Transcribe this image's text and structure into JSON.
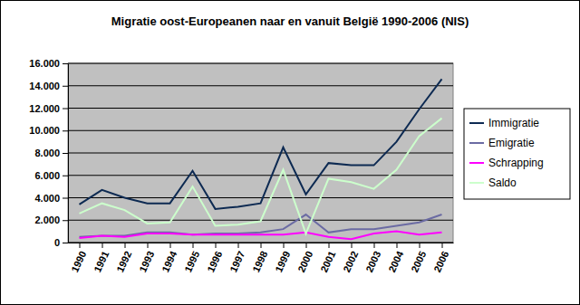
{
  "chart_data": {
    "type": "line",
    "title": "Migratie oost-Europeanen naar en vanuit België 1990-2006 (NIS)",
    "categories": [
      "1990",
      "1991",
      "1992",
      "1993",
      "1994",
      "1995",
      "1996",
      "1997",
      "1998",
      "1999",
      "2000",
      "2001",
      "2002",
      "2003",
      "2004",
      "2005",
      "2006"
    ],
    "series": [
      {
        "name": "Immigratie",
        "color": "#0d2a52",
        "values": [
          3400,
          4700,
          4000,
          3500,
          3500,
          6400,
          3000,
          3200,
          3500,
          8500,
          4300,
          7100,
          6900,
          6900,
          9000,
          11900,
          14600
        ]
      },
      {
        "name": "Emigratie",
        "color": "#6b6ba3",
        "values": [
          500,
          600,
          600,
          900,
          900,
          700,
          800,
          800,
          900,
          1200,
          2500,
          900,
          1200,
          1200,
          1500,
          1800,
          2500
        ]
      },
      {
        "name": "Schrapping",
        "color": "#ff00ff",
        "values": [
          400,
          600,
          500,
          800,
          800,
          700,
          700,
          700,
          700,
          700,
          900,
          500,
          300,
          800,
          1000,
          700,
          900
        ]
      },
      {
        "name": "Saldo",
        "color": "#ccffcc",
        "values": [
          2600,
          3500,
          2900,
          1700,
          1800,
          5000,
          1500,
          1600,
          1900,
          6500,
          800,
          5700,
          5400,
          4800,
          6500,
          9500,
          11100
        ]
      }
    ],
    "ylim": [
      0,
      16000
    ],
    "yticks": [
      0,
      {
        "value": 2000,
        "label": "2.000"
      },
      {
        "value": 4000,
        "label": "4.000"
      },
      {
        "value": 6000,
        "label": "6.000"
      },
      {
        "value": 8000,
        "label": "8.000"
      },
      {
        "value": 10000,
        "label": "10.000"
      },
      {
        "value": 12000,
        "label": "12.000"
      },
      {
        "value": 14000,
        "label": "14.000"
      },
      {
        "value": 16000,
        "label": "16.000"
      }
    ],
    "grid": true,
    "legend": "right"
  }
}
